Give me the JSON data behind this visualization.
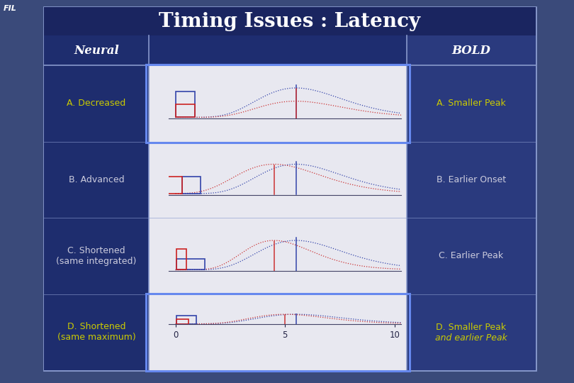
{
  "title": "Timing Issues : Latency",
  "fil_label": "FIL",
  "neural_label": "Neural",
  "bold_label": "BOLD",
  "bg_color": "#3a4a7a",
  "main_box_bg": "#1e2d70",
  "title_bg": "#1a2560",
  "left_col_bg": "#1e2d6e",
  "right_col_bg": "#2a3a7e",
  "panel_bg": "#e8e8f0",
  "title_color": "#ffffff",
  "neural_color": "#ffffff",
  "bold_color": "#ffffff",
  "row_labels_left": [
    "A. Decreased",
    "B. Advanced",
    "C. Shortened\n(same integrated)",
    "D. Shortened\n(same maximum)"
  ],
  "row_labels_right": [
    "A. Smaller Peak",
    "B. Earlier Onset",
    "C. Earlier Peak",
    "D. Smaller Peak\nand earlier Peak"
  ],
  "row_label_colors_left": [
    "#cccc00",
    "#ccccdd",
    "#ccccdd",
    "#cccc00"
  ],
  "row_label_colors_right": [
    "#cccc00",
    "#ccccdd",
    "#ccccdd",
    "#cccc00"
  ],
  "row_label_italic_right_last": true,
  "border_color": "#8899cc",
  "highlight_border": "#6688ee"
}
